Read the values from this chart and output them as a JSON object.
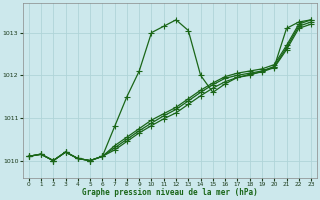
{
  "xlabel": "Graphe pression niveau de la mer (hPa)",
  "bg_color": "#cce8ec",
  "grid_color": "#b0d4d8",
  "line_color": "#1a6618",
  "marker": "+",
  "markersize": 4,
  "linewidth": 0.9,
  "xlim": [
    -0.5,
    23.5
  ],
  "ylim": [
    1009.6,
    1013.7
  ],
  "yticks": [
    1010,
    1011,
    1012,
    1013
  ],
  "xticks": [
    0,
    1,
    2,
    3,
    4,
    5,
    6,
    7,
    8,
    9,
    10,
    11,
    12,
    13,
    14,
    15,
    16,
    17,
    18,
    19,
    20,
    21,
    22,
    23
  ],
  "series": [
    [
      1010.1,
      1010.15,
      1010.0,
      1010.2,
      1010.05,
      1010.0,
      1010.1,
      1010.8,
      1011.5,
      1012.1,
      1013.0,
      1013.15,
      1013.3,
      1013.05,
      1012.0,
      1011.6,
      1011.8,
      1011.95,
      1012.0,
      1012.1,
      1012.2,
      1013.1,
      1013.25,
      1013.3
    ],
    [
      1010.1,
      1010.15,
      1010.0,
      1010.2,
      1010.05,
      1010.0,
      1010.1,
      1010.35,
      1010.55,
      1010.75,
      1010.95,
      1011.1,
      1011.25,
      1011.45,
      1011.65,
      1011.82,
      1011.97,
      1012.05,
      1012.1,
      1012.15,
      1012.25,
      1012.7,
      1013.2,
      1013.3
    ],
    [
      1010.1,
      1010.15,
      1010.0,
      1010.2,
      1010.05,
      1010.0,
      1010.1,
      1010.3,
      1010.5,
      1010.7,
      1010.88,
      1011.05,
      1011.2,
      1011.4,
      1011.6,
      1011.78,
      1011.93,
      1012.0,
      1012.05,
      1012.1,
      1012.2,
      1012.65,
      1013.15,
      1013.25
    ],
    [
      1010.1,
      1010.15,
      1010.0,
      1010.2,
      1010.05,
      1010.0,
      1010.1,
      1010.25,
      1010.45,
      1010.65,
      1010.82,
      1010.98,
      1011.12,
      1011.32,
      1011.52,
      1011.7,
      1011.85,
      1011.95,
      1012.02,
      1012.08,
      1012.18,
      1012.6,
      1013.1,
      1013.2
    ]
  ]
}
